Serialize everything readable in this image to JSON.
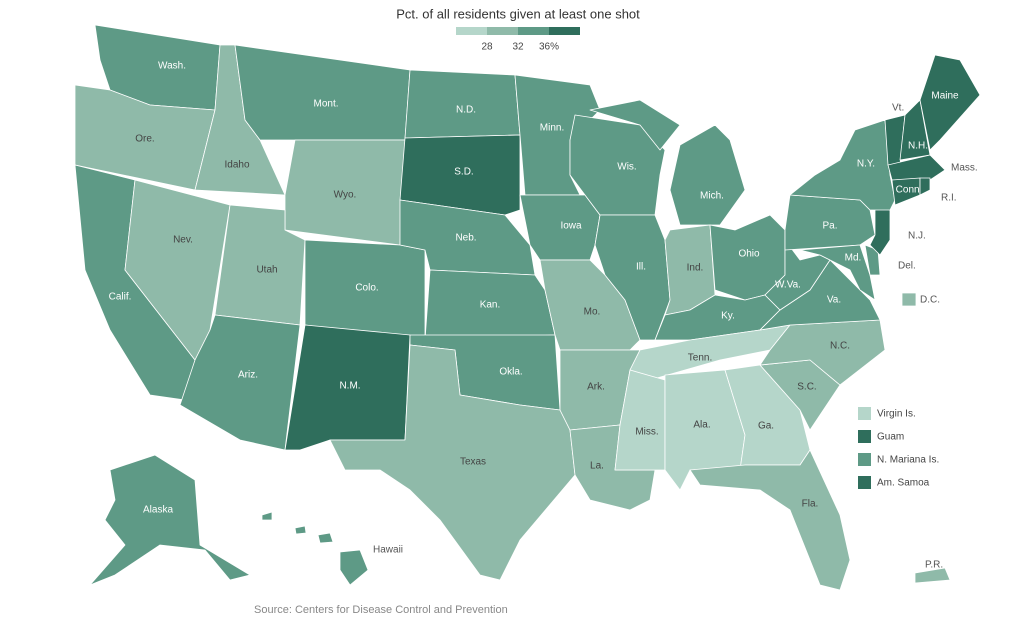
{
  "legend": {
    "title": "Pct. of all residents given at least one shot",
    "colors": [
      "#b5d6ca",
      "#8fbaa9",
      "#5e9a86",
      "#2f6e5c"
    ],
    "ticks": [
      28,
      32,
      {
        "value": 36,
        "label": "36%"
      }
    ]
  },
  "regions": [
    {
      "name": "Wash.",
      "color": "#5e9a86"
    },
    {
      "name": "Ore.",
      "color": "#8fbaa9"
    },
    {
      "name": "Calif.",
      "color": "#5e9a86"
    },
    {
      "name": "Nev.",
      "color": "#8fbaa9"
    },
    {
      "name": "Idaho",
      "color": "#8fbaa9"
    },
    {
      "name": "Mont.",
      "color": "#5e9a86"
    },
    {
      "name": "Wyo.",
      "color": "#8fbaa9"
    },
    {
      "name": "Utah",
      "color": "#8fbaa9"
    },
    {
      "name": "Ariz.",
      "color": "#5e9a86"
    },
    {
      "name": "Colo.",
      "color": "#5e9a86"
    },
    {
      "name": "N.M.",
      "color": "#2f6e5c"
    },
    {
      "name": "N.D.",
      "color": "#5e9a86"
    },
    {
      "name": "S.D.",
      "color": "#2f6e5c"
    },
    {
      "name": "Neb.",
      "color": "#5e9a86"
    },
    {
      "name": "Kan.",
      "color": "#5e9a86"
    },
    {
      "name": "Okla.",
      "color": "#5e9a86"
    },
    {
      "name": "Texas",
      "color": "#8fbaa9"
    },
    {
      "name": "Minn.",
      "color": "#5e9a86"
    },
    {
      "name": "Iowa",
      "color": "#5e9a86"
    },
    {
      "name": "Mo.",
      "color": "#8fbaa9"
    },
    {
      "name": "Ark.",
      "color": "#8fbaa9"
    },
    {
      "name": "La.",
      "color": "#8fbaa9"
    },
    {
      "name": "Wis.",
      "color": "#5e9a86"
    },
    {
      "name": "Ill.",
      "color": "#5e9a86"
    },
    {
      "name": "Mich.",
      "color": "#5e9a86"
    },
    {
      "name": "Ind.",
      "color": "#8fbaa9"
    },
    {
      "name": "Ohio",
      "color": "#5e9a86"
    },
    {
      "name": "Ky.",
      "color": "#5e9a86"
    },
    {
      "name": "Tenn.",
      "color": "#b5d6ca"
    },
    {
      "name": "Miss.",
      "color": "#b5d6ca"
    },
    {
      "name": "Ala.",
      "color": "#b5d6ca"
    },
    {
      "name": "Ga.",
      "color": "#b5d6ca"
    },
    {
      "name": "Fla.",
      "color": "#8fbaa9"
    },
    {
      "name": "S.C.",
      "color": "#8fbaa9"
    },
    {
      "name": "N.C.",
      "color": "#8fbaa9"
    },
    {
      "name": "Va.",
      "color": "#5e9a86"
    },
    {
      "name": "W.Va.",
      "color": "#5e9a86"
    },
    {
      "name": "Pa.",
      "color": "#5e9a86"
    },
    {
      "name": "Md.",
      "color": "#5e9a86"
    },
    {
      "name": "Del.",
      "color": "#5e9a86"
    },
    {
      "name": "N.J.",
      "color": "#2f6e5c"
    },
    {
      "name": "N.Y.",
      "color": "#5e9a86"
    },
    {
      "name": "Vt.",
      "color": "#2f6e5c"
    },
    {
      "name": "N.H.",
      "color": "#2f6e5c"
    },
    {
      "name": "Maine",
      "color": "#2f6e5c"
    },
    {
      "name": "Mass.",
      "color": "#2f6e5c"
    },
    {
      "name": "Conn.",
      "color": "#2f6e5c"
    },
    {
      "name": "R.I.",
      "color": "#2f6e5c"
    },
    {
      "name": "Alaska",
      "color": "#5e9a86"
    },
    {
      "name": "Hawaii",
      "color": "#5e9a86"
    },
    {
      "name": "D.C.",
      "color": "#8fbaa9"
    },
    {
      "name": "P.R.",
      "color": "#8fbaa9"
    }
  ],
  "territories": [
    {
      "name": "Virgin Is.",
      "color": "#b5d6ca"
    },
    {
      "name": "Guam",
      "color": "#2f6e5c"
    },
    {
      "name": "N. Mariana Is.",
      "color": "#5e9a86"
    },
    {
      "name": "Am. Samoa",
      "color": "#2f6e5c"
    }
  ],
  "source": "Source: Centers for Disease Control and Prevention"
}
